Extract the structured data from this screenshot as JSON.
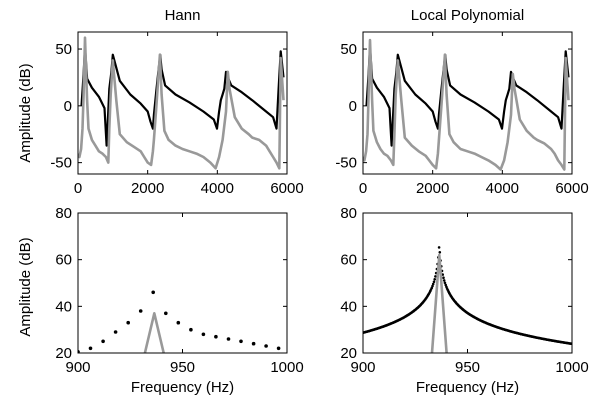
{
  "figure": {
    "ylabel_top": "Amplitude (dB)",
    "ylabel_bottom": "Amplitude (dB)"
  },
  "chart_data": [
    {
      "id": "top-left",
      "type": "line",
      "title": "Hann",
      "xlabel": "",
      "ylabel": "Amplitude (dB)",
      "xlim": [
        0,
        6000
      ],
      "ylim": [
        -60,
        65
      ],
      "xticks": [
        0,
        2000,
        4000,
        6000
      ],
      "yticks": [
        -50,
        0,
        50
      ],
      "grid": false,
      "series": [
        {
          "color": "#000000",
          "style": "line",
          "x": [
            100,
            160,
            200,
            260,
            400,
            600,
            760,
            820,
            860,
            900,
            960,
            1000,
            1200,
            1500,
            1800,
            2000,
            2080,
            2150,
            2180,
            2250,
            2300,
            2360,
            2400,
            2500,
            2800,
            3200,
            3600,
            3900,
            3990,
            4050,
            4100,
            4150,
            4200,
            4250,
            4300,
            4400,
            4700,
            5000,
            5400,
            5600,
            5700,
            5760,
            5820,
            5900
          ],
          "y": [
            0,
            28,
            52,
            24,
            16,
            8,
            -2,
            -35,
            -10,
            15,
            30,
            45,
            22,
            10,
            2,
            -5,
            -14,
            -20,
            -8,
            14,
            28,
            45,
            32,
            18,
            10,
            3,
            -5,
            -12,
            -20,
            -5,
            5,
            10,
            15,
            30,
            25,
            18,
            12,
            5,
            -5,
            -10,
            -20,
            15,
            48,
            25
          ]
        },
        {
          "color": "#999999",
          "style": "line",
          "x": [
            0,
            40,
            90,
            130,
            160,
            200,
            260,
            300,
            400,
            500,
            600,
            700,
            800,
            870,
            900,
            940,
            1000,
            1100,
            1200,
            1400,
            1600,
            1800,
            1900,
            2000,
            2100,
            2150,
            2180,
            2250,
            2350,
            2400,
            2480,
            2600,
            2800,
            3000,
            3200,
            3400,
            3600,
            3800,
            3950,
            4050,
            4150,
            4250,
            4300,
            4350,
            4500,
            4700,
            4900,
            5000,
            5200,
            5400,
            5500,
            5600,
            5700,
            5780,
            5820,
            5900
          ],
          "y": [
            -42,
            -45,
            -38,
            -20,
            10,
            60,
            5,
            -20,
            -30,
            -35,
            -40,
            -42,
            -45,
            -50,
            -20,
            10,
            40,
            5,
            -25,
            -32,
            -36,
            -40,
            -45,
            -50,
            -52,
            -40,
            -30,
            0,
            45,
            10,
            -22,
            -30,
            -35,
            -38,
            -40,
            -42,
            -45,
            -50,
            -55,
            -45,
            -30,
            -5,
            30,
            15,
            -10,
            -20,
            -25,
            -28,
            -30,
            -35,
            -40,
            -45,
            -50,
            -55,
            42,
            5
          ]
        }
      ]
    },
    {
      "id": "top-right",
      "type": "line",
      "title": "Local Polynomial",
      "xlabel": "",
      "ylabel": "",
      "xlim": [
        0,
        6000
      ],
      "ylim": [
        -60,
        65
      ],
      "xticks": [
        0,
        2000,
        4000,
        6000
      ],
      "yticks": [
        -50,
        0,
        50
      ],
      "grid": false,
      "series": [
        {
          "color": "#000000",
          "style": "line",
          "x": [
            100,
            160,
            200,
            260,
            400,
            600,
            760,
            820,
            860,
            900,
            960,
            1000,
            1200,
            1500,
            1800,
            2000,
            2080,
            2150,
            2180,
            2250,
            2300,
            2360,
            2400,
            2500,
            2800,
            3200,
            3600,
            3900,
            3990,
            4050,
            4100,
            4150,
            4200,
            4250,
            4300,
            4400,
            4700,
            5000,
            5400,
            5600,
            5700,
            5760,
            5820,
            5900
          ],
          "y": [
            0,
            28,
            52,
            24,
            16,
            8,
            -2,
            -35,
            -10,
            15,
            30,
            45,
            22,
            10,
            2,
            -5,
            -14,
            -20,
            -8,
            14,
            28,
            45,
            32,
            18,
            10,
            3,
            -5,
            -12,
            -20,
            -5,
            5,
            10,
            15,
            30,
            25,
            18,
            12,
            5,
            -5,
            -10,
            -20,
            15,
            48,
            25
          ]
        },
        {
          "color": "#999999",
          "style": "line",
          "x": [
            0,
            40,
            90,
            130,
            160,
            200,
            260,
            300,
            400,
            500,
            600,
            700,
            800,
            870,
            900,
            940,
            1000,
            1100,
            1200,
            1400,
            1600,
            1800,
            1900,
            2000,
            2100,
            2150,
            2180,
            2250,
            2350,
            2400,
            2480,
            2600,
            2800,
            3000,
            3200,
            3400,
            3600,
            3800,
            3950,
            4050,
            4150,
            4250,
            4300,
            4350,
            4500,
            4700,
            4900,
            5000,
            5200,
            5400,
            5500,
            5600,
            5700,
            5780,
            5820,
            5900
          ],
          "y": [
            -45,
            -48,
            -40,
            -25,
            10,
            58,
            5,
            -22,
            -32,
            -38,
            -42,
            -44,
            -48,
            -52,
            -25,
            10,
            40,
            5,
            -28,
            -35,
            -40,
            -44,
            -48,
            -52,
            -55,
            -42,
            -30,
            0,
            45,
            10,
            -25,
            -32,
            -38,
            -40,
            -42,
            -45,
            -48,
            -52,
            -56,
            -48,
            -32,
            -8,
            28,
            15,
            -12,
            -22,
            -28,
            -30,
            -33,
            -38,
            -42,
            -48,
            -52,
            -56,
            42,
            5
          ]
        }
      ]
    },
    {
      "id": "bottom-left",
      "type": "scatter",
      "title": "",
      "xlabel": "Frequency (Hz)",
      "ylabel": "Amplitude (dB)",
      "xlim": [
        900,
        1000
      ],
      "ylim": [
        20,
        80
      ],
      "xticks": [
        900,
        950,
        1000
      ],
      "yticks": [
        20,
        40,
        60,
        80
      ],
      "grid": false,
      "series": [
        {
          "color": "#000000",
          "style": "dots",
          "x": [
            900,
            906,
            912,
            918,
            924,
            930,
            936,
            942,
            948,
            954,
            960,
            966,
            972,
            978,
            984,
            990,
            996
          ],
          "y": [
            20.5,
            22,
            25,
            29,
            33,
            38,
            46,
            37,
            33,
            30,
            28,
            27,
            26,
            25,
            24,
            23,
            22
          ]
        },
        {
          "color": "#999999",
          "style": "line",
          "x": [
            932,
            936.5,
            941
          ],
          "y": [
            20,
            37,
            20
          ]
        }
      ]
    },
    {
      "id": "bottom-right",
      "type": "scatter",
      "title": "",
      "xlabel": "Frequency (Hz)",
      "ylabel": "",
      "xlim": [
        900,
        1000
      ],
      "ylim": [
        20,
        80
      ],
      "xticks": [
        900,
        950,
        1000
      ],
      "yticks": [
        20,
        40,
        60,
        80
      ],
      "grid": false,
      "series": [
        {
          "color": "#000000",
          "style": "dense-dots",
          "peak_x": 936.5,
          "peak_y": 67,
          "x": [],
          "y": []
        },
        {
          "color": "#999999",
          "style": "line",
          "x": [
            933,
            936.5,
            940
          ],
          "y": [
            20,
            62,
            20
          ]
        }
      ]
    }
  ]
}
